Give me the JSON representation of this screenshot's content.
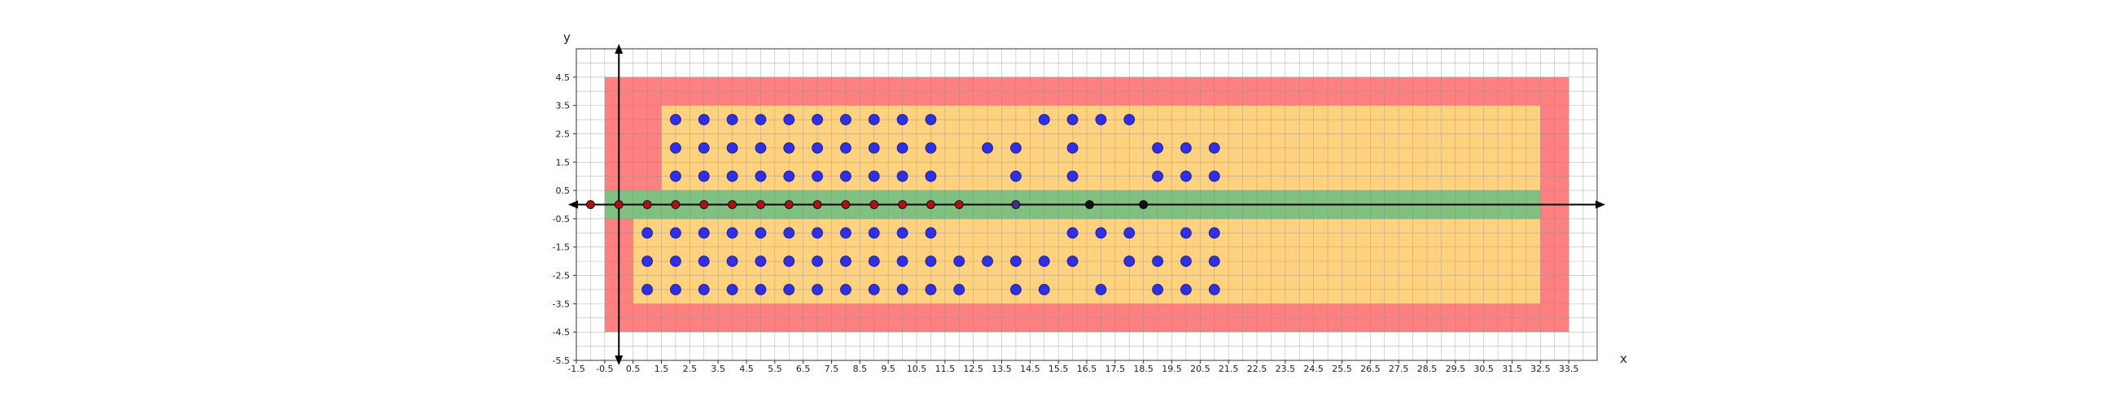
{
  "chart_data": {
    "type": "scatter",
    "xlabel": "x",
    "ylabel": "y",
    "xlim": [
      -1.5,
      34.5
    ],
    "ylim": [
      -5.5,
      5.5
    ],
    "grid": true,
    "x_ticks": [
      "-1.5",
      "-0.5",
      "0.5",
      "1.5",
      "2.5",
      "3.5",
      "4.5",
      "5.5",
      "6.5",
      "7.5",
      "8.5",
      "9.5",
      "10.5",
      "11.5",
      "12.5",
      "13.5",
      "14.5",
      "15.5",
      "16.5",
      "17.5",
      "18.5",
      "19.5",
      "20.5",
      "21.5",
      "22.5",
      "23.5",
      "24.5",
      "25.5",
      "26.5",
      "27.5",
      "28.5",
      "29.5",
      "30.5",
      "31.5",
      "32.5",
      "33.5"
    ],
    "y_ticks": [
      "4.5",
      "3.5",
      "2.5",
      "1.5",
      "0.5",
      "-0.5",
      "-1.5",
      "-2.5",
      "-3.5",
      "-4.5",
      "-5.5"
    ],
    "regions": [
      {
        "color": "#ff8080",
        "x": [
          -0.5,
          33.5
        ],
        "y": [
          -4.5,
          4.5
        ]
      },
      {
        "color": "#ffd280",
        "x": [
          1.5,
          32.5
        ],
        "y": [
          0.5,
          3.5
        ]
      },
      {
        "color": "#ffd280",
        "x": [
          0.5,
          32.5
        ],
        "y": [
          -3.5,
          -0.5
        ]
      },
      {
        "color": "#80c080",
        "x": [
          -0.5,
          32.5
        ],
        "y": [
          -0.5,
          0.5
        ]
      }
    ],
    "series": [
      {
        "color": "#3030e0",
        "points": [
          [
            2,
            3
          ],
          [
            3,
            3
          ],
          [
            4,
            3
          ],
          [
            5,
            3
          ],
          [
            6,
            3
          ],
          [
            7,
            3
          ],
          [
            8,
            3
          ],
          [
            9,
            3
          ],
          [
            10,
            3
          ],
          [
            11,
            3
          ],
          [
            15,
            3
          ],
          [
            16,
            3
          ],
          [
            17,
            3
          ],
          [
            18,
            3
          ],
          [
            2,
            2
          ],
          [
            3,
            2
          ],
          [
            4,
            2
          ],
          [
            5,
            2
          ],
          [
            6,
            2
          ],
          [
            7,
            2
          ],
          [
            8,
            2
          ],
          [
            9,
            2
          ],
          [
            10,
            2
          ],
          [
            11,
            2
          ],
          [
            13,
            2
          ],
          [
            14,
            2
          ],
          [
            16,
            2
          ],
          [
            19,
            2
          ],
          [
            20,
            2
          ],
          [
            21,
            2
          ],
          [
            2,
            1
          ],
          [
            3,
            1
          ],
          [
            4,
            1
          ],
          [
            5,
            1
          ],
          [
            6,
            1
          ],
          [
            7,
            1
          ],
          [
            8,
            1
          ],
          [
            9,
            1
          ],
          [
            10,
            1
          ],
          [
            11,
            1
          ],
          [
            14,
            1
          ],
          [
            16,
            1
          ],
          [
            19,
            1
          ],
          [
            20,
            1
          ],
          [
            21,
            1
          ],
          [
            1,
            -1
          ],
          [
            2,
            -1
          ],
          [
            3,
            -1
          ],
          [
            4,
            -1
          ],
          [
            5,
            -1
          ],
          [
            6,
            -1
          ],
          [
            7,
            -1
          ],
          [
            8,
            -1
          ],
          [
            9,
            -1
          ],
          [
            10,
            -1
          ],
          [
            11,
            -1
          ],
          [
            16,
            -1
          ],
          [
            17,
            -1
          ],
          [
            18,
            -1
          ],
          [
            20,
            -1
          ],
          [
            21,
            -1
          ],
          [
            1,
            -2
          ],
          [
            2,
            -2
          ],
          [
            3,
            -2
          ],
          [
            4,
            -2
          ],
          [
            5,
            -2
          ],
          [
            6,
            -2
          ],
          [
            7,
            -2
          ],
          [
            8,
            -2
          ],
          [
            9,
            -2
          ],
          [
            10,
            -2
          ],
          [
            11,
            -2
          ],
          [
            12,
            -2
          ],
          [
            13,
            -2
          ],
          [
            14,
            -2
          ],
          [
            15,
            -2
          ],
          [
            16,
            -2
          ],
          [
            18,
            -2
          ],
          [
            19,
            -2
          ],
          [
            20,
            -2
          ],
          [
            21,
            -2
          ],
          [
            1,
            -3
          ],
          [
            2,
            -3
          ],
          [
            3,
            -3
          ],
          [
            4,
            -3
          ],
          [
            5,
            -3
          ],
          [
            6,
            -3
          ],
          [
            7,
            -3
          ],
          [
            8,
            -3
          ],
          [
            9,
            -3
          ],
          [
            10,
            -3
          ],
          [
            11,
            -3
          ],
          [
            12,
            -3
          ],
          [
            14,
            -3
          ],
          [
            15,
            -3
          ],
          [
            17,
            -3
          ],
          [
            19,
            -3
          ],
          [
            20,
            -3
          ],
          [
            21,
            -3
          ]
        ]
      },
      {
        "color": "#b01010",
        "points": [
          [
            -1,
            0
          ],
          [
            0,
            0
          ],
          [
            1,
            0
          ],
          [
            2,
            0
          ],
          [
            3,
            0
          ],
          [
            4,
            0
          ],
          [
            5,
            0
          ],
          [
            6,
            0
          ],
          [
            7,
            0
          ],
          [
            8,
            0
          ],
          [
            9,
            0
          ],
          [
            10,
            0
          ],
          [
            11,
            0
          ],
          [
            12,
            0
          ]
        ]
      },
      {
        "color": "#4a2a8a",
        "points": [
          [
            14,
            0
          ]
        ]
      },
      {
        "color": "#111111",
        "points": [
          [
            16.6,
            0
          ],
          [
            18.5,
            0
          ]
        ]
      }
    ]
  }
}
